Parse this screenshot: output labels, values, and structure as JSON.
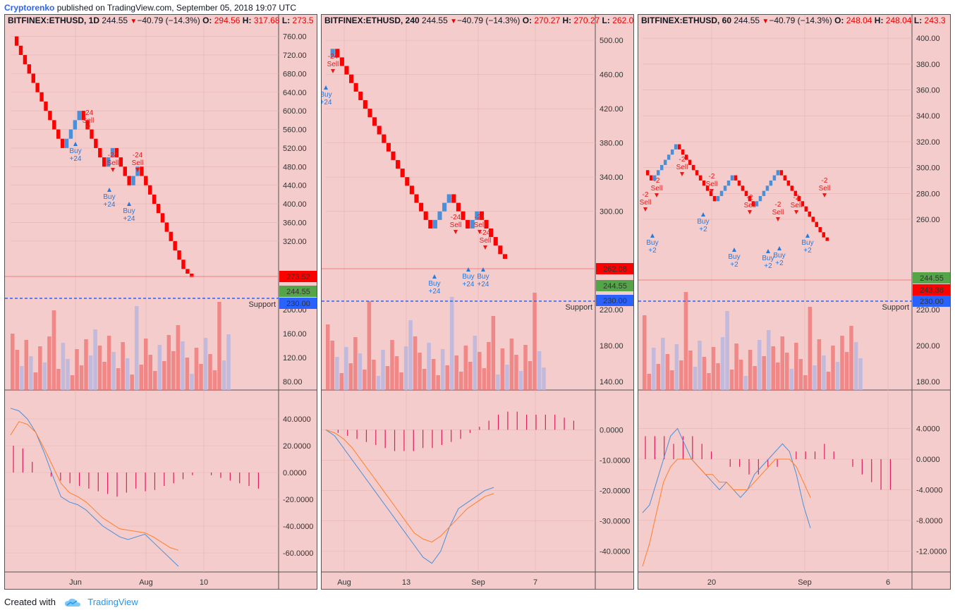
{
  "header": {
    "author": "Cryptorenko",
    "published": "published on TradingView.com, September 05, 2018 19:07 UTC"
  },
  "footer": {
    "created_with": "Created with",
    "brand": "TradingView"
  },
  "colors": {
    "panel_bg": "#f4cccc",
    "up": "#4a90d9",
    "down": "#ff0000",
    "signal": "#e31b5c",
    "support": "#2962ff"
  },
  "panels": [
    {
      "symbol": "BITFINEX:ETHUSD, 1D",
      "last": "244.55",
      "change": "−40.79 (−14.3%)",
      "o_lbl": "O:",
      "o": "294.56",
      "h_lbl": "H:",
      "h": "317.68",
      "l_lbl": "L:",
      "l": "273.5",
      "price_ticks": [
        "760.00",
        "720.00",
        "680.00",
        "640.00",
        "600.00",
        "560.00",
        "520.00",
        "480.00",
        "440.00",
        "400.00",
        "360.00",
        "320.00"
      ],
      "vol_ticks": [
        "200.00",
        "160.00",
        "120.00",
        "80.00"
      ],
      "macd_ticks": [
        "40.0000",
        "20.0000",
        "0.0000",
        "-20.0000",
        "-40.0000",
        "-60.0000"
      ],
      "x_labels": [
        "Jun",
        "Aug",
        "10"
      ],
      "price_tags": [
        {
          "text": "273.52",
          "color": "#ff0000"
        },
        {
          "text": "244.55",
          "color": "#53a548"
        },
        {
          "text": "230.00",
          "color": "#2962ff"
        }
      ],
      "support_label": "Support",
      "signals": [
        {
          "type": "sell",
          "qty": "-24",
          "text": "Sell"
        },
        {
          "type": "sell",
          "qty": "-24",
          "text": "Sell"
        },
        {
          "type": "sell",
          "qty": "-24",
          "text": "Sell"
        },
        {
          "type": "buy",
          "qty": "+24",
          "text": "Buy"
        },
        {
          "type": "buy",
          "qty": "+24",
          "text": "Buy"
        },
        {
          "type": "buy",
          "qty": "+24",
          "text": "Buy"
        }
      ]
    },
    {
      "symbol": "BITFINEX:ETHUSD, 240",
      "last": "244.55",
      "change": "−40.79 (−14.3%)",
      "o_lbl": "O:",
      "o": "270.27",
      "h_lbl": "H:",
      "h": "270.27",
      "l_lbl": "L:",
      "l": "262.0",
      "price_ticks": [
        "500.00",
        "460.00",
        "420.00",
        "380.00",
        "340.00",
        "300.00"
      ],
      "vol_ticks": [
        "220.00",
        "180.00",
        "140.00"
      ],
      "macd_ticks": [
        "0.0000",
        "-10.0000",
        "-20.0000",
        "-30.0000",
        "-40.0000"
      ],
      "x_labels": [
        "Aug",
        "13",
        "Sep",
        "7"
      ],
      "price_tags": [
        {
          "text": "262.08",
          "color": "#ff0000"
        },
        {
          "text": "244.55",
          "color": "#53a548"
        },
        {
          "text": "230.00",
          "color": "#2962ff"
        }
      ],
      "support_label": "Support",
      "signals": [
        {
          "type": "sell",
          "qty": "-24",
          "text": "Sell"
        },
        {
          "type": "sell",
          "qty": "-24",
          "text": "Sell"
        },
        {
          "type": "sell",
          "qty": "-24",
          "text": "Sell"
        },
        {
          "type": "sell",
          "qty": "-24",
          "text": "Sell"
        },
        {
          "type": "buy",
          "qty": "+24",
          "text": "Buy"
        },
        {
          "type": "buy",
          "qty": "+24",
          "text": "Buy"
        },
        {
          "type": "buy",
          "qty": "+24",
          "text": "Buy"
        },
        {
          "type": "buy",
          "qty": "+24",
          "text": "Buy"
        }
      ]
    },
    {
      "symbol": "BITFINEX:ETHUSD, 60",
      "last": "244.55",
      "change": "−40.79 (−14.3%)",
      "o_lbl": "O:",
      "o": "248.04",
      "h_lbl": "H:",
      "h": "248.04",
      "l_lbl": "L:",
      "l": "243.3",
      "price_ticks": [
        "400.00",
        "380.00",
        "360.00",
        "340.00",
        "320.00",
        "300.00",
        "280.00",
        "260.00"
      ],
      "vol_ticks": [
        "220.00",
        "200.00",
        "180.00"
      ],
      "macd_ticks": [
        "4.0000",
        "0.0000",
        "-4.0000",
        "-8.0000",
        "-12.0000"
      ],
      "x_labels": [
        "20",
        "Sep",
        "6"
      ],
      "price_tags": [
        {
          "text": "244.55",
          "color": "#53a548"
        },
        {
          "text": "243.36",
          "color": "#ff0000"
        },
        {
          "text": "230.00",
          "color": "#2962ff"
        }
      ],
      "support_label": "Support",
      "signals": [
        {
          "type": "sell",
          "qty": "-2",
          "text": "Sell"
        },
        {
          "type": "sell",
          "qty": "-2",
          "text": "Sell"
        },
        {
          "type": "sell",
          "qty": "-2",
          "text": "Sell"
        },
        {
          "type": "sell",
          "qty": "-2",
          "text": "Sell"
        },
        {
          "type": "sell",
          "qty": "-2",
          "text": "Sell"
        },
        {
          "type": "sell",
          "qty": "-2",
          "text": "Sell"
        },
        {
          "type": "sell",
          "qty": "-2",
          "text": "Sell"
        },
        {
          "type": "sell",
          "qty": "-2",
          "text": "Sell"
        },
        {
          "type": "buy",
          "qty": "+2",
          "text": "Buy"
        },
        {
          "type": "buy",
          "qty": "+2",
          "text": "Buy"
        },
        {
          "type": "buy",
          "qty": "+2",
          "text": "Buy"
        },
        {
          "type": "buy",
          "qty": "+2",
          "text": "Buy"
        },
        {
          "type": "buy",
          "qty": "+2",
          "text": "Buy"
        },
        {
          "type": "buy",
          "qty": "+2",
          "text": "Buy"
        }
      ]
    }
  ],
  "chart_data": [
    {
      "type": "line",
      "title": "BITFINEX:ETHUSD, 1D",
      "price_axis": [
        320,
        760
      ],
      "renko_close_path": [
        760,
        740,
        720,
        700,
        680,
        660,
        640,
        620,
        600,
        580,
        560,
        540,
        520,
        540,
        560,
        580,
        600,
        580,
        560,
        540,
        520,
        500,
        480,
        500,
        520,
        500,
        480,
        460,
        440,
        460,
        480,
        460,
        440,
        420,
        400,
        380,
        360,
        340,
        320,
        300,
        280,
        260,
        250,
        244.55
      ],
      "last_price": 244.55,
      "support": 230.0,
      "macd_line": [
        48,
        46,
        40,
        30,
        15,
        -2,
        -18,
        -22,
        -24,
        -28,
        -34,
        -40,
        -44,
        -48,
        -50,
        -48,
        -46,
        -52,
        -58,
        -64,
        -70
      ],
      "signal_line": [
        28,
        38,
        36,
        30,
        18,
        5,
        -8,
        -15,
        -18,
        -22,
        -28,
        -34,
        -38,
        -42,
        -43,
        -44,
        -45,
        -48,
        -52,
        -56,
        -58
      ],
      "histogram": [
        20,
        18,
        8,
        0,
        -3,
        -6,
        -8,
        -10,
        -12,
        -14,
        -16,
        -18,
        -15,
        -12,
        -14,
        -13,
        -10,
        -8,
        -5,
        -2,
        0,
        -2,
        -4,
        -6,
        -8,
        -10,
        -12
      ]
    },
    {
      "type": "line",
      "title": "BITFINEX:ETHUSD, 240",
      "price_axis": [
        300,
        500
      ],
      "renko_close_path": [
        480,
        490,
        480,
        470,
        460,
        450,
        440,
        430,
        420,
        410,
        400,
        390,
        380,
        370,
        360,
        350,
        340,
        330,
        320,
        310,
        300,
        290,
        280,
        290,
        300,
        310,
        320,
        310,
        300,
        290,
        280,
        290,
        300,
        290,
        280,
        270,
        260,
        250,
        244.55
      ],
      "last_price": 244.55,
      "support": 230.0,
      "macd_line": [
        0,
        -2,
        -6,
        -10,
        -14,
        -18,
        -22,
        -26,
        -30,
        -34,
        -38,
        -42,
        -44,
        -40,
        -32,
        -26,
        -24,
        -22,
        -20,
        -19
      ],
      "signal_line": [
        0,
        -1,
        -3,
        -6,
        -10,
        -14,
        -18,
        -22,
        -26,
        -30,
        -34,
        -36,
        -37,
        -35,
        -32,
        -29,
        -26,
        -24,
        -22,
        -21
      ],
      "histogram": [
        0,
        -1,
        -2,
        -3,
        -4,
        -5,
        -6,
        -7,
        -7,
        -7,
        -6,
        -6,
        -5,
        -4,
        -3,
        -1,
        1,
        3,
        5,
        6,
        6,
        5,
        5,
        5,
        5,
        4,
        3
      ]
    },
    {
      "type": "line",
      "title": "BITFINEX:ETHUSD, 60",
      "price_axis": [
        260,
        400
      ],
      "renko_close_path": [
        298,
        294,
        290,
        294,
        298,
        302,
        306,
        310,
        314,
        318,
        314,
        310,
        306,
        302,
        298,
        294,
        290,
        286,
        282,
        278,
        274,
        278,
        282,
        286,
        290,
        294,
        290,
        286,
        282,
        278,
        274,
        270,
        274,
        278,
        282,
        286,
        290,
        294,
        298,
        294,
        290,
        286,
        282,
        278,
        274,
        270,
        266,
        262,
        258,
        254,
        250,
        246,
        243.36
      ],
      "last_price": 244.55,
      "support": 230.0,
      "macd_line": [
        -7,
        -6,
        -3,
        0,
        3,
        4,
        2,
        0,
        -1,
        -2,
        -3,
        -4,
        -3,
        -4,
        -5,
        -4,
        -2,
        -1,
        0,
        1,
        2,
        1,
        -2,
        -6,
        -9
      ],
      "signal_line": [
        -14,
        -11,
        -7,
        -3,
        -1,
        0,
        0,
        0,
        -1,
        -2,
        -2,
        -3,
        -3,
        -4,
        -4,
        -4,
        -3,
        -2,
        -1,
        0,
        0,
        0,
        -1,
        -3,
        -5
      ],
      "histogram": [
        3,
        3,
        3,
        2,
        3,
        3,
        2,
        1,
        0,
        -1,
        -1,
        -2,
        -2,
        -1,
        -1,
        0,
        1,
        1,
        1,
        2,
        1,
        0,
        -1,
        -2,
        -3,
        -4,
        -4
      ]
    }
  ]
}
